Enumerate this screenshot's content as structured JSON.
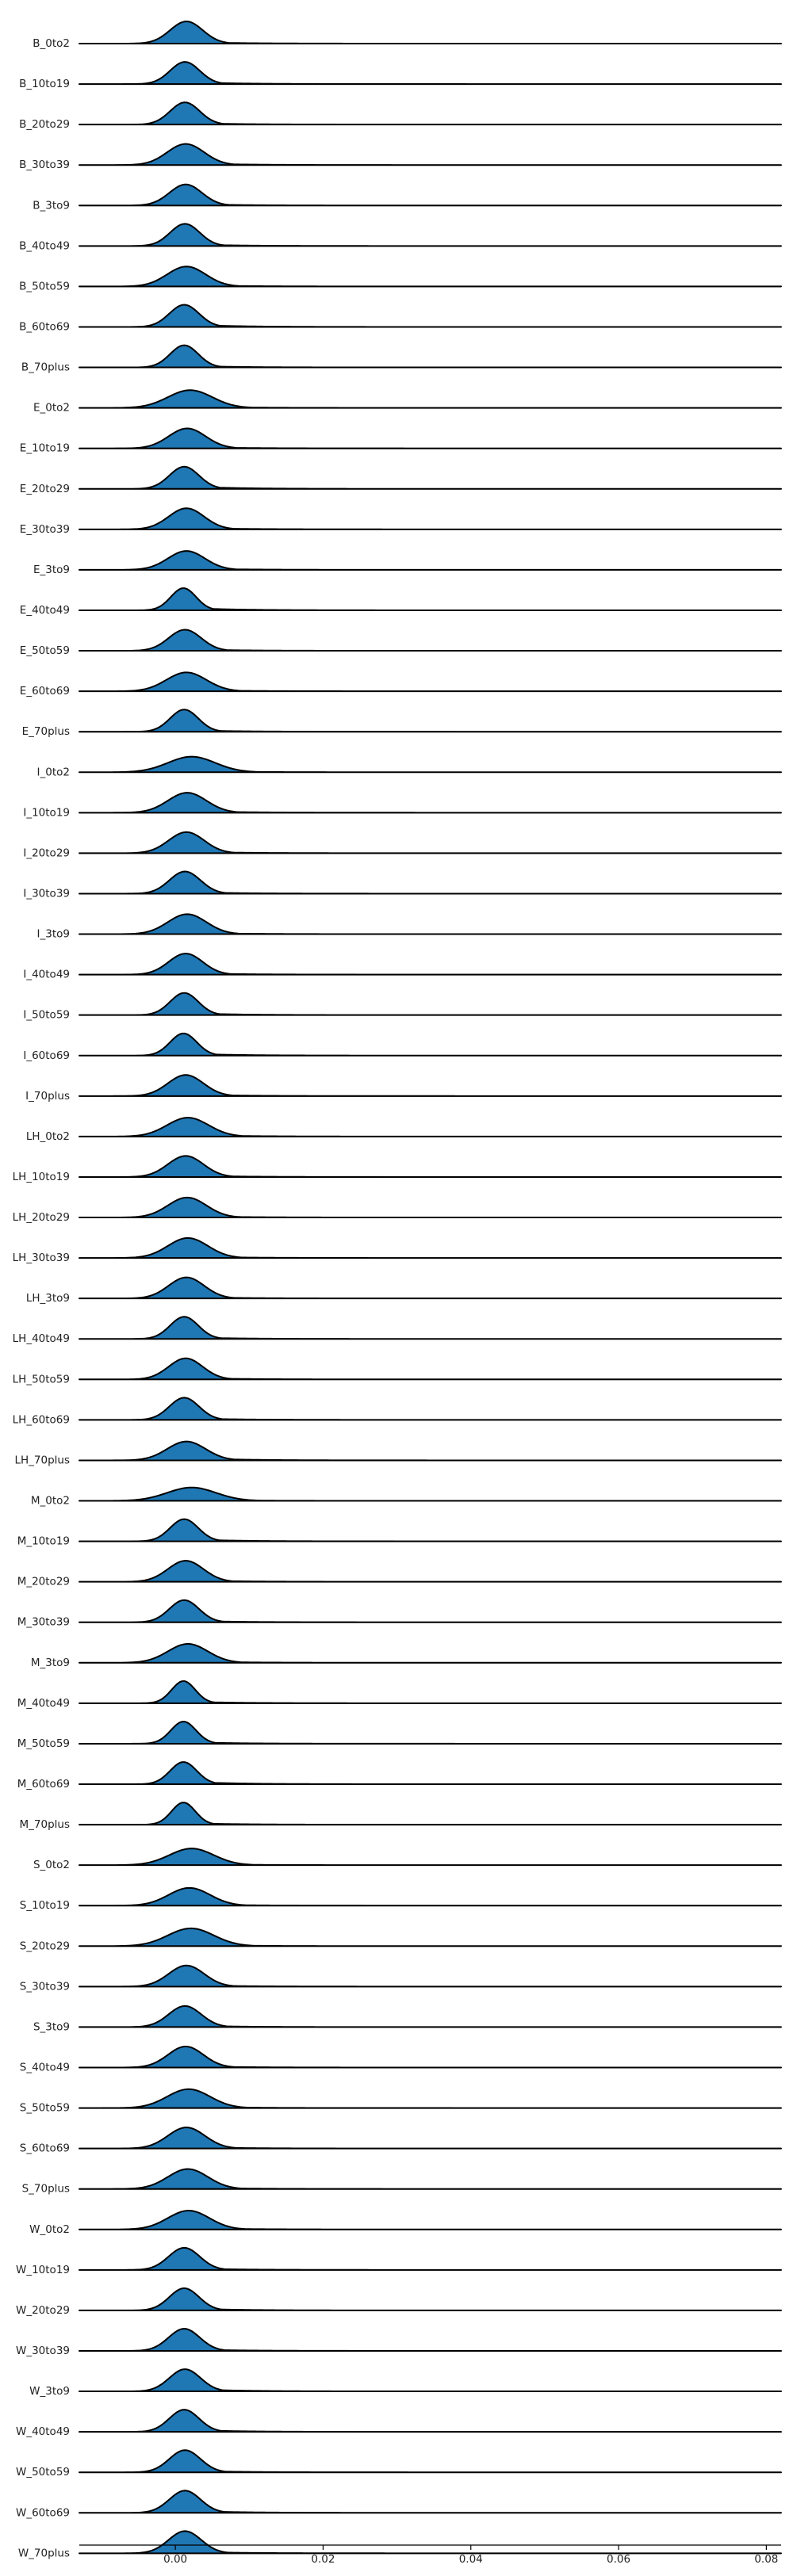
{
  "chart_data": {
    "type": "ridgeline",
    "x_ticks": [
      0.0,
      0.02,
      0.04,
      0.06,
      0.08
    ],
    "x_tick_labels": [
      "0.00",
      "0.02",
      "0.04",
      "0.06",
      "0.08"
    ],
    "xlim": [
      -0.013,
      0.082
    ],
    "fill_color": "#1f77b4",
    "line_color": "#000000",
    "series": [
      {
        "name": "B_0to2",
        "peak": 0.0015,
        "spread": 0.0022,
        "height": 1.0,
        "tail": 0.08
      },
      {
        "name": "B_10to19",
        "peak": 0.0013,
        "spread": 0.002,
        "height": 1.0,
        "tail": 0.1
      },
      {
        "name": "B_20to29",
        "peak": 0.0013,
        "spread": 0.002,
        "height": 1.0,
        "tail": 0.08
      },
      {
        "name": "B_30to39",
        "peak": 0.0014,
        "spread": 0.0025,
        "height": 0.95,
        "tail": 0.1
      },
      {
        "name": "B_3to9",
        "peak": 0.0014,
        "spread": 0.0022,
        "height": 0.95,
        "tail": 0.08
      },
      {
        "name": "B_40to49",
        "peak": 0.0013,
        "spread": 0.002,
        "height": 1.0,
        "tail": 0.08
      },
      {
        "name": "B_50to59",
        "peak": 0.0015,
        "spread": 0.0026,
        "height": 0.9,
        "tail": 0.08
      },
      {
        "name": "B_60to69",
        "peak": 0.0012,
        "spread": 0.002,
        "height": 1.0,
        "tail": 0.12
      },
      {
        "name": "B_70plus",
        "peak": 0.0012,
        "spread": 0.0019,
        "height": 1.0,
        "tail": 0.08
      },
      {
        "name": "E_0to2",
        "peak": 0.002,
        "spread": 0.003,
        "height": 0.8,
        "tail": 0.08
      },
      {
        "name": "E_10to19",
        "peak": 0.0016,
        "spread": 0.0025,
        "height": 0.9,
        "tail": 0.08
      },
      {
        "name": "E_20to29",
        "peak": 0.0012,
        "spread": 0.002,
        "height": 1.0,
        "tail": 0.12
      },
      {
        "name": "E_30to39",
        "peak": 0.0015,
        "spread": 0.0024,
        "height": 0.95,
        "tail": 0.08
      },
      {
        "name": "E_3to9",
        "peak": 0.0015,
        "spread": 0.0025,
        "height": 0.85,
        "tail": 0.08
      },
      {
        "name": "E_40to49",
        "peak": 0.0011,
        "spread": 0.0017,
        "height": 1.0,
        "tail": 0.12
      },
      {
        "name": "E_50to59",
        "peak": 0.0013,
        "spread": 0.0022,
        "height": 0.95,
        "tail": 0.08
      },
      {
        "name": "E_60to69",
        "peak": 0.0015,
        "spread": 0.0027,
        "height": 0.85,
        "tail": 0.08
      },
      {
        "name": "E_70plus",
        "peak": 0.0012,
        "spread": 0.0019,
        "height": 1.0,
        "tail": 0.08
      },
      {
        "name": "I_0to2",
        "peak": 0.0022,
        "spread": 0.0032,
        "height": 0.7,
        "tail": 0.08
      },
      {
        "name": "I_10to19",
        "peak": 0.0016,
        "spread": 0.0026,
        "height": 0.9,
        "tail": 0.1
      },
      {
        "name": "I_20to29",
        "peak": 0.0015,
        "spread": 0.0024,
        "height": 0.95,
        "tail": 0.08
      },
      {
        "name": "I_30to39",
        "peak": 0.0013,
        "spread": 0.0021,
        "height": 1.0,
        "tail": 0.08
      },
      {
        "name": "I_3to9",
        "peak": 0.0016,
        "spread": 0.0026,
        "height": 0.9,
        "tail": 0.08
      },
      {
        "name": "I_40to49",
        "peak": 0.0014,
        "spread": 0.0023,
        "height": 0.95,
        "tail": 0.08
      },
      {
        "name": "I_50to59",
        "peak": 0.0012,
        "spread": 0.0019,
        "height": 1.0,
        "tail": 0.1
      },
      {
        "name": "I_60to69",
        "peak": 0.0011,
        "spread": 0.0018,
        "height": 1.0,
        "tail": 0.1
      },
      {
        "name": "I_70plus",
        "peak": 0.0014,
        "spread": 0.0024,
        "height": 0.95,
        "tail": 0.08
      },
      {
        "name": "LH_0to2",
        "peak": 0.0017,
        "spread": 0.0028,
        "height": 0.85,
        "tail": 0.1
      },
      {
        "name": "LH_10to19",
        "peak": 0.0014,
        "spread": 0.0024,
        "height": 0.95,
        "tail": 0.08
      },
      {
        "name": "LH_20to29",
        "peak": 0.0016,
        "spread": 0.0026,
        "height": 0.9,
        "tail": 0.08
      },
      {
        "name": "LH_30to39",
        "peak": 0.0017,
        "spread": 0.0027,
        "height": 0.9,
        "tail": 0.08
      },
      {
        "name": "LH_3to9",
        "peak": 0.0015,
        "spread": 0.0024,
        "height": 0.95,
        "tail": 0.08
      },
      {
        "name": "LH_40to49",
        "peak": 0.0012,
        "spread": 0.0019,
        "height": 1.0,
        "tail": 0.08
      },
      {
        "name": "LH_50to59",
        "peak": 0.0014,
        "spread": 0.0023,
        "height": 0.95,
        "tail": 0.08
      },
      {
        "name": "LH_60to69",
        "peak": 0.0012,
        "spread": 0.002,
        "height": 1.0,
        "tail": 0.08
      },
      {
        "name": "LH_70plus",
        "peak": 0.0015,
        "spread": 0.0026,
        "height": 0.85,
        "tail": 0.14
      },
      {
        "name": "M_0to2",
        "peak": 0.0022,
        "spread": 0.0033,
        "height": 0.6,
        "tail": 0.08
      },
      {
        "name": "M_10to19",
        "peak": 0.0012,
        "spread": 0.0019,
        "height": 1.0,
        "tail": 0.1
      },
      {
        "name": "M_20to29",
        "peak": 0.0014,
        "spread": 0.0024,
        "height": 0.95,
        "tail": 0.08
      },
      {
        "name": "M_30to39",
        "peak": 0.0012,
        "spread": 0.002,
        "height": 1.0,
        "tail": 0.08
      },
      {
        "name": "M_3to9",
        "peak": 0.0017,
        "spread": 0.0027,
        "height": 0.85,
        "tail": 0.08
      },
      {
        "name": "M_40to49",
        "peak": 0.0011,
        "spread": 0.0016,
        "height": 1.0,
        "tail": 0.08
      },
      {
        "name": "M_50to59",
        "peak": 0.0011,
        "spread": 0.0017,
        "height": 1.0,
        "tail": 0.08
      },
      {
        "name": "M_60to69",
        "peak": 0.0011,
        "spread": 0.0018,
        "height": 1.0,
        "tail": 0.12
      },
      {
        "name": "M_70plus",
        "peak": 0.0011,
        "spread": 0.0016,
        "height": 1.0,
        "tail": 0.08
      },
      {
        "name": "S_0to2",
        "peak": 0.0022,
        "spread": 0.003,
        "height": 0.75,
        "tail": 0.08
      },
      {
        "name": "S_10to19",
        "peak": 0.0019,
        "spread": 0.0028,
        "height": 0.8,
        "tail": 0.08
      },
      {
        "name": "S_20to29",
        "peak": 0.0021,
        "spread": 0.0031,
        "height": 0.8,
        "tail": 0.08
      },
      {
        "name": "S_30to39",
        "peak": 0.0015,
        "spread": 0.0024,
        "height": 0.95,
        "tail": 0.08
      },
      {
        "name": "S_3to9",
        "peak": 0.0013,
        "spread": 0.0022,
        "height": 0.95,
        "tail": 0.08
      },
      {
        "name": "S_40to49",
        "peak": 0.0014,
        "spread": 0.0024,
        "height": 0.95,
        "tail": 0.08
      },
      {
        "name": "S_50to59",
        "peak": 0.0018,
        "spread": 0.0029,
        "height": 0.85,
        "tail": 0.08
      },
      {
        "name": "S_60to69",
        "peak": 0.0015,
        "spread": 0.0025,
        "height": 0.95,
        "tail": 0.08
      },
      {
        "name": "S_70plus",
        "peak": 0.0017,
        "spread": 0.0027,
        "height": 0.9,
        "tail": 0.08
      },
      {
        "name": "W_0to2",
        "peak": 0.0018,
        "spread": 0.0028,
        "height": 0.85,
        "tail": 0.08
      },
      {
        "name": "W_10to19",
        "peak": 0.0012,
        "spread": 0.0021,
        "height": 1.0,
        "tail": 0.08
      },
      {
        "name": "W_20to29",
        "peak": 0.0012,
        "spread": 0.002,
        "height": 1.0,
        "tail": 0.1
      },
      {
        "name": "W_30to39",
        "peak": 0.0012,
        "spread": 0.0021,
        "height": 1.0,
        "tail": 0.08
      },
      {
        "name": "W_3to9",
        "peak": 0.0013,
        "spread": 0.0021,
        "height": 1.0,
        "tail": 0.12
      },
      {
        "name": "W_40to49",
        "peak": 0.0012,
        "spread": 0.002,
        "height": 1.0,
        "tail": 0.1
      },
      {
        "name": "W_50to59",
        "peak": 0.0013,
        "spread": 0.0021,
        "height": 1.0,
        "tail": 0.08
      },
      {
        "name": "W_60to69",
        "peak": 0.0013,
        "spread": 0.0021,
        "height": 1.0,
        "tail": 0.1
      },
      {
        "name": "W_70plus",
        "peak": 0.0013,
        "spread": 0.0022,
        "height": 1.0,
        "tail": 0.08
      }
    ]
  }
}
